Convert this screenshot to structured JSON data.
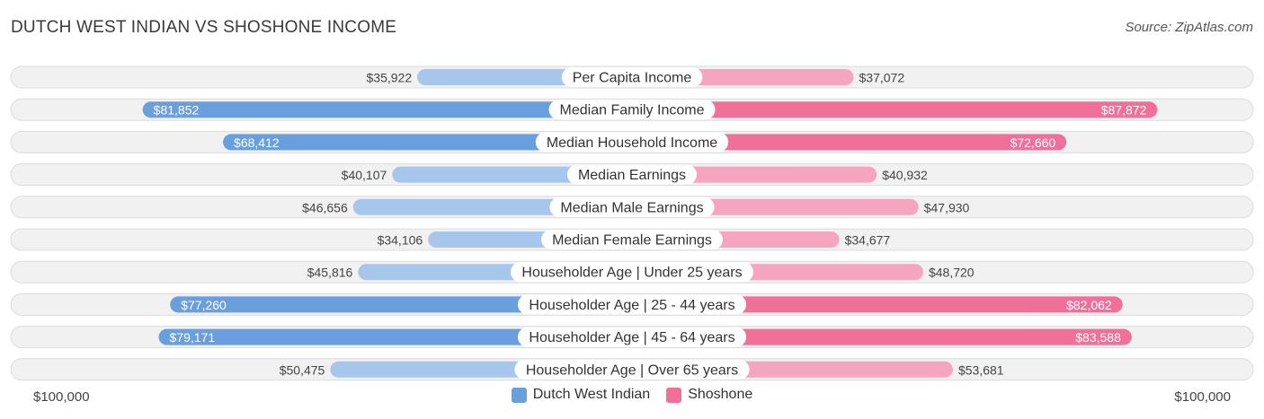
{
  "title": "DUTCH WEST INDIAN VS SHOSHONE INCOME",
  "source": "Source: ZipAtlas.com",
  "colors": {
    "left_strong": "#6a9fde",
    "left_light": "#a7c6ec",
    "right_strong": "#f0709a",
    "right_light": "#f6a5c0",
    "row_bg": "#f1f1f1",
    "row_border": "#dcdcdc"
  },
  "axis": {
    "left_label": "$100,000",
    "right_label": "$100,000"
  },
  "legend": [
    {
      "name": "Dutch West Indian",
      "color": "#6a9fde"
    },
    {
      "name": "Shoshone",
      "color": "#f0709a"
    }
  ],
  "chart_data": {
    "type": "bar",
    "orientation": "horizontal-diverging",
    "title": "DUTCH WEST INDIAN VS SHOSHONE INCOME",
    "xlim": [
      0,
      100000
    ],
    "categories": [
      "Per Capita Income",
      "Median Family Income",
      "Median Household Income",
      "Median Earnings",
      "Median Male Earnings",
      "Median Female Earnings",
      "Householder Age | Under 25 years",
      "Householder Age | 25 - 44 years",
      "Householder Age | 45 - 64 years",
      "Householder Age | Over 65 years"
    ],
    "series": [
      {
        "name": "Dutch West Indian",
        "values": [
          35922,
          81852,
          68412,
          40107,
          46656,
          34106,
          45816,
          77260,
          79171,
          50475
        ],
        "labels": [
          "$35,922",
          "$81,852",
          "$68,412",
          "$40,107",
          "$46,656",
          "$34,106",
          "$45,816",
          "$77,260",
          "$79,171",
          "$50,475"
        ]
      },
      {
        "name": "Shoshone",
        "values": [
          37072,
          87872,
          72660,
          40932,
          47930,
          34677,
          48720,
          82062,
          83588,
          53681
        ],
        "labels": [
          "$37,072",
          "$87,872",
          "$72,660",
          "$40,932",
          "$47,930",
          "$34,677",
          "$48,720",
          "$82,062",
          "$83,588",
          "$53,681"
        ]
      }
    ]
  }
}
